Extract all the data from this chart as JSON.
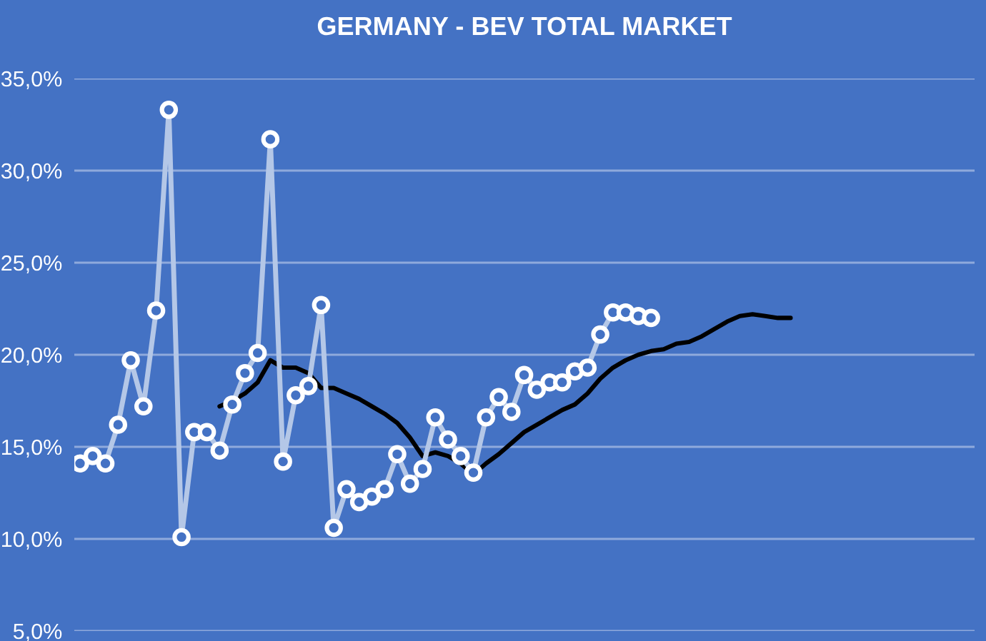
{
  "chart_data": {
    "type": "line",
    "title": "GERMANY - BEV TOTAL MARKET",
    "categories": [
      null,
      null,
      null,
      null,
      null,
      null,
      null,
      null,
      null,
      null,
      null,
      null,
      null,
      null,
      null,
      null,
      null,
      null,
      null,
      null,
      null,
      null,
      null,
      null,
      null,
      null,
      null,
      null,
      null,
      null,
      null,
      null,
      null,
      null,
      null,
      null,
      null,
      null,
      null,
      null,
      null,
      null,
      null,
      null,
      null,
      null,
      null,
      null,
      null,
      null,
      null,
      null,
      null,
      null,
      null,
      null,
      null,
      null,
      null,
      null,
      null,
      null,
      null,
      null,
      null,
      null,
      null,
      null,
      null,
      null,
      null
    ],
    "series": [
      {
        "color": "#b4c7e7",
        "marker": "circle",
        "values": [
          14.1,
          14.5,
          14.1,
          16.2,
          19.7,
          17.2,
          22.4,
          33.3,
          10.1,
          15.8,
          15.8,
          14.8,
          17.3,
          19.0,
          20.1,
          31.7,
          14.2,
          17.8,
          18.3,
          22.7,
          10.6,
          12.7,
          12.0,
          12.3,
          12.7,
          14.6,
          13.0,
          13.8,
          16.6,
          15.4,
          14.5,
          13.6,
          16.6,
          17.7,
          16.9,
          18.9,
          18.1,
          18.5,
          18.5,
          19.1,
          19.3,
          21.1,
          22.3,
          22.3,
          22.1,
          22.0,
          null,
          null,
          null,
          null,
          null,
          null,
          null,
          null,
          null,
          null,
          null,
          null,
          null,
          null,
          null,
          null,
          null,
          null,
          null,
          null,
          null,
          null,
          null,
          null,
          null
        ]
      },
      {
        "color": "#000000",
        "marker": "none",
        "values": [
          null,
          null,
          null,
          null,
          null,
          null,
          null,
          null,
          null,
          null,
          null,
          17.2,
          17.5,
          17.9,
          18.5,
          19.7,
          19.3,
          19.3,
          19.0,
          18.2,
          18.2,
          17.9,
          17.6,
          17.2,
          16.8,
          16.3,
          15.5,
          14.5,
          14.7,
          14.5,
          14.1,
          13.5,
          14.1,
          14.6,
          15.2,
          15.8,
          16.2,
          16.6,
          17.0,
          17.3,
          17.9,
          18.7,
          19.3,
          19.7,
          20.0,
          20.2,
          20.3,
          20.6,
          20.7,
          21.0,
          21.4,
          21.8,
          22.1,
          22.2,
          22.1,
          22.0,
          22.0,
          null,
          null,
          null,
          null,
          null,
          null,
          null,
          null,
          null,
          null,
          null,
          null,
          null,
          null
        ]
      }
    ],
    "ylim": [
      5,
      35
    ],
    "yticks": [
      {
        "value": 5,
        "label": "5,0%"
      },
      {
        "value": 10,
        "label": "10,0%"
      },
      {
        "value": 15,
        "label": "15,0%"
      },
      {
        "value": 20,
        "label": "20,0%"
      },
      {
        "value": 25,
        "label": "25,0%"
      },
      {
        "value": 30,
        "label": "30,0%"
      },
      {
        "value": 35,
        "label": "35,0%"
      }
    ],
    "grid": "y",
    "legend": false,
    "line_style": "solid"
  }
}
